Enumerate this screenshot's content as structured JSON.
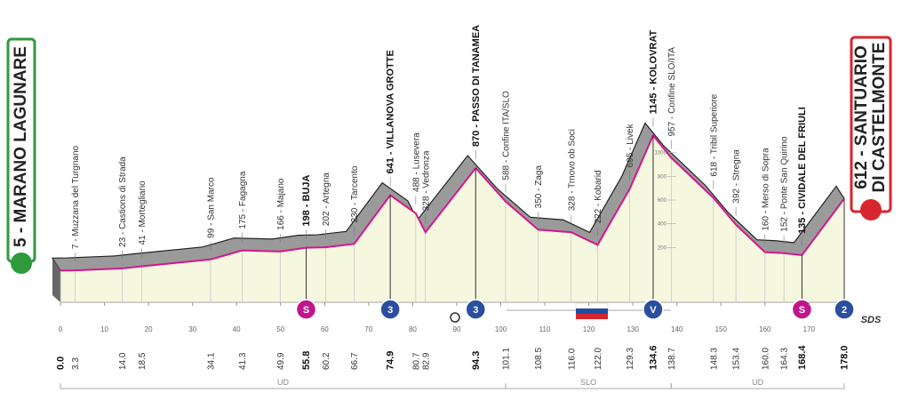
{
  "chart_data": {
    "type": "area",
    "x": [
      0,
      3.3,
      14,
      18.5,
      34.1,
      41.3,
      49.9,
      55.8,
      60.2,
      66.7,
      74.9,
      80.7,
      82.9,
      94.3,
      101.1,
      108.5,
      116,
      122,
      129.3,
      134.6,
      138.7,
      148.3,
      153.4,
      160,
      164.3,
      168.4,
      178
    ],
    "x_labels": [
      "0.0",
      "3.3",
      "14.0",
      "18.5",
      "34.1",
      "41.3",
      "49.9",
      "55.8",
      "60.2",
      "66.7",
      "74.9",
      "80.7",
      "82.9",
      "94.3",
      "101.1",
      "108.5",
      "116.0",
      "122.0",
      "129.3",
      "134.6",
      "138.7",
      "148.3",
      "153.4",
      "160.0",
      "164.3",
      "168.4",
      "178.0"
    ],
    "values": [
      5,
      7,
      23,
      41,
      99,
      175,
      166,
      198,
      202,
      230,
      641,
      488,
      328,
      870,
      588,
      350,
      328,
      222,
      695,
      1145,
      957,
      618,
      392,
      160,
      152,
      135,
      612
    ],
    "value_labels": [
      "5 - MARANO LAGUNARE",
      "7 - Muzzana del Turgnano",
      "23 - Castions di Strada",
      "41 - Mortegliano",
      "99 - San Marco",
      "175 - Fagagna",
      "166 - Majano",
      "198 - BUJA",
      "202 - Artegna",
      "230 - Tarcento",
      "641 - VILLANOVA GROTTE",
      "488 - Lusevera",
      "328 - Vedronza",
      "870 - PASSO DI TANAMEA",
      "588 - Confine ITA/SLO",
      "350 - Zaga",
      "328 - Trnovo ob Soci",
      "222 - Kobarid",
      "695 - Livek",
      "1145 - KOLOVRAT",
      "957 - Confine SLO/ITA",
      "618 - Tribil Superiore",
      "392 - Stregna",
      "160 - Merso di Sopra",
      "152 - Ponte San Quirino",
      "135 - CIVIDALE DEL FRIULI",
      "612 - SANTUARIO DI CASTELMONTE"
    ],
    "line_color": "#d6168c",
    "xlim": [
      0,
      178
    ],
    "xticks": [
      0,
      10,
      20,
      30,
      40,
      50,
      60,
      70,
      80,
      90,
      100,
      110,
      120,
      130,
      140,
      150,
      160,
      170
    ],
    "ylim": [
      0,
      1500
    ],
    "yticks": [
      200,
      400,
      600,
      800,
      1000
    ],
    "markers": [
      {
        "km": 55.8,
        "label": "S",
        "color": "#c0168c"
      },
      {
        "km": 74.9,
        "label": "3",
        "color": "#2b4f9e"
      },
      {
        "km": 94.3,
        "label": "3",
        "color": "#2b4f9e"
      },
      {
        "km": 134.6,
        "label": "V",
        "color": "#2b4f9e"
      },
      {
        "km": 168.4,
        "label": "S",
        "color": "#c0168c"
      },
      {
        "km": 178,
        "label": "2",
        "color": "#2b4f9e"
      }
    ],
    "regions": [
      {
        "name": "UD",
        "from": 0,
        "to": 101.1
      },
      {
        "name": "SLO",
        "from": 101.1,
        "to": 138.7
      },
      {
        "name": "UD",
        "from": 138.7,
        "to": 178
      }
    ],
    "logo": "SDS"
  }
}
